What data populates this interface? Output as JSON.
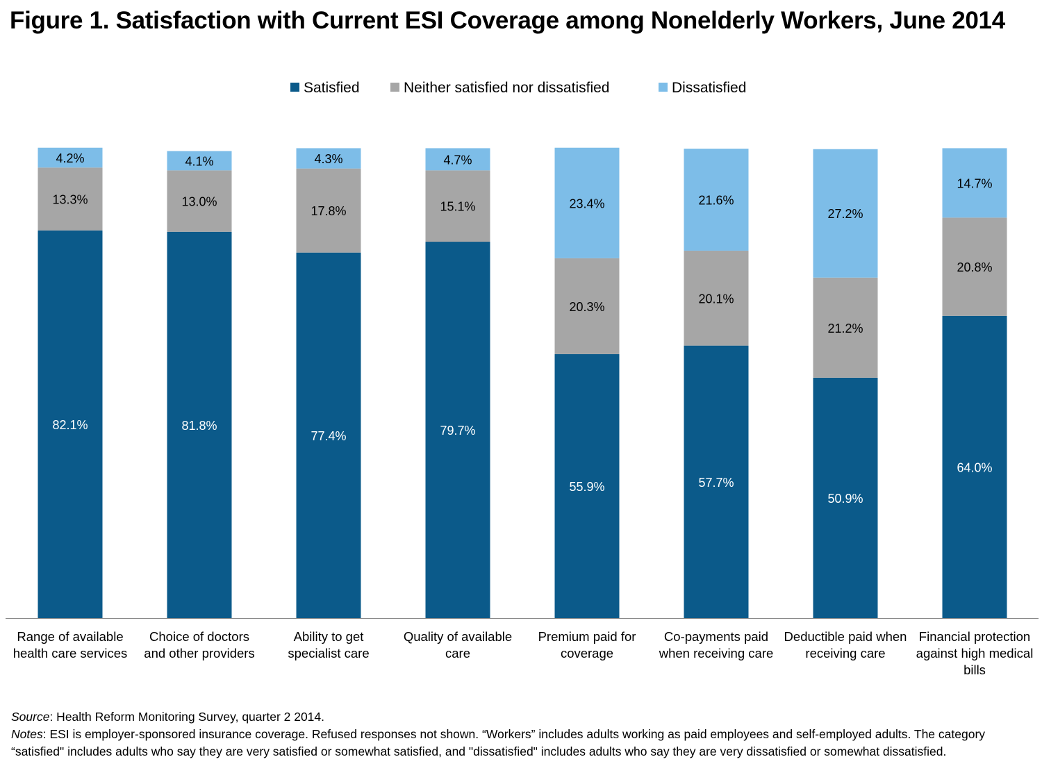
{
  "title": "Figure 1. Satisfaction with Current ESI Coverage among Nonelderly Workers, June 2014",
  "chart_data": {
    "type": "bar",
    "stacked": true,
    "title": "Figure 1. Satisfaction with Current ESI Coverage among Nonelderly Workers, June 2014",
    "xlabel": "",
    "ylabel": "",
    "ylim": [
      0,
      100
    ],
    "grid": false,
    "legend_position": "top-center",
    "categories": [
      [
        "Range of available",
        "health care services"
      ],
      [
        "Choice of doctors",
        "and other providers"
      ],
      [
        "Ability to get",
        "specialist care"
      ],
      [
        "Quality of available",
        "care"
      ],
      [
        "Premium paid for",
        "coverage"
      ],
      [
        "Co-payments paid",
        "when receiving care"
      ],
      [
        "Deductible paid when",
        "receiving care"
      ],
      [
        "Financial protection",
        "against high medical",
        "bills"
      ]
    ],
    "series": [
      {
        "name": "Satisfied",
        "color": "#0B5A8A",
        "values": [
          82.1,
          81.8,
          77.4,
          79.7,
          55.9,
          57.7,
          50.9,
          64.0
        ],
        "labels": [
          "82.1%",
          "81.8%",
          "77.4%",
          "79.7%",
          "55.9%",
          "57.7%",
          "50.9%",
          "64.0%"
        ]
      },
      {
        "name": "Neither satisfied nor dissatisfied",
        "color": "#A6A6A6",
        "values": [
          13.3,
          13.0,
          17.8,
          15.1,
          20.3,
          20.1,
          21.2,
          20.8
        ],
        "labels": [
          "13.3%",
          "13.0%",
          "17.8%",
          "15.1%",
          "20.3%",
          "20.1%",
          "21.2%",
          "20.8%"
        ]
      },
      {
        "name": "Dissatisfied",
        "color": "#7DBDE8",
        "values": [
          4.2,
          4.1,
          4.3,
          4.7,
          23.4,
          21.6,
          27.2,
          14.7
        ],
        "labels": [
          "4.2%",
          "4.1%",
          "4.3%",
          "4.7%",
          "23.4%",
          "21.6%",
          "27.2%",
          "14.7%"
        ]
      }
    ]
  },
  "notes": {
    "source_label": "Source",
    "source_text": ": Health Reform Monitoring Survey, quarter 2 2014.",
    "notes_label": "Notes",
    "notes_text": ": ESI is employer-sponsored insurance coverage.  Refused responses not shown. “Workers” includes adults working as paid employees and self-employed adults. The category “satisfied\" includes adults who say they are very satisfied or somewhat satisfied, and \"dissatisfied\" includes adults who say they are very dissatisfied or somewhat dissatisfied."
  }
}
